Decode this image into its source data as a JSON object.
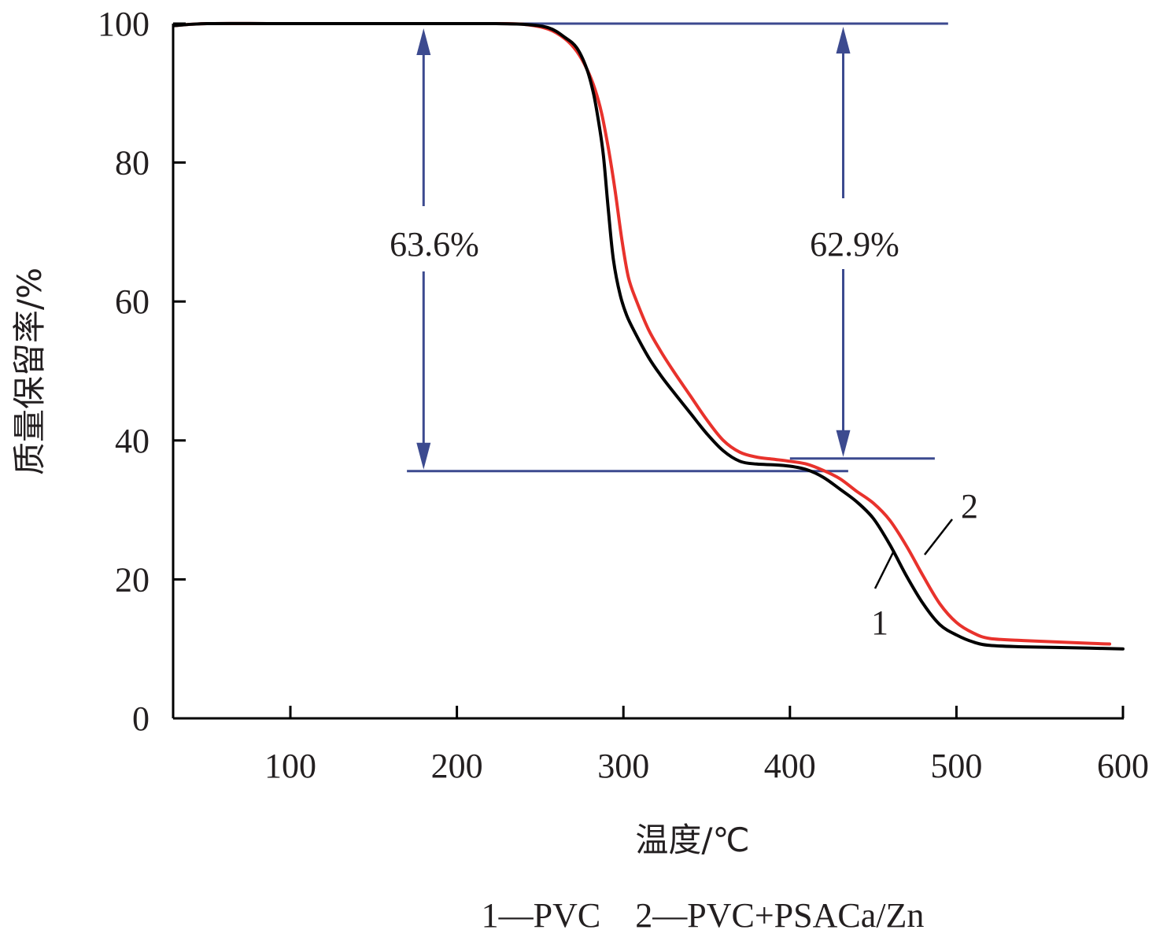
{
  "chart_data": {
    "type": "line",
    "xlabel": "温度/℃",
    "ylabel": "质量保留率/%",
    "xlim": [
      30,
      600
    ],
    "ylim": [
      0,
      100
    ],
    "x_ticks": [
      100,
      200,
      300,
      400,
      500,
      600
    ],
    "y_ticks": [
      0,
      20,
      40,
      60,
      80,
      100
    ],
    "grid": false,
    "series": [
      {
        "name": "1",
        "color": "#000000",
        "points": [
          [
            30,
            99.7
          ],
          [
            50,
            100
          ],
          [
            100,
            100
          ],
          [
            200,
            100
          ],
          [
            220,
            100
          ],
          [
            240,
            99.9
          ],
          [
            255,
            99.4
          ],
          [
            265,
            98.0
          ],
          [
            272,
            96.5
          ],
          [
            278,
            93.5
          ],
          [
            282,
            90.0
          ],
          [
            285,
            86.0
          ],
          [
            288,
            81.0
          ],
          [
            291,
            73.0
          ],
          [
            294,
            66.0
          ],
          [
            298,
            61.0
          ],
          [
            302,
            58.0
          ],
          [
            307,
            55.5
          ],
          [
            315,
            52.0
          ],
          [
            322,
            49.5
          ],
          [
            330,
            47.0
          ],
          [
            340,
            44.0
          ],
          [
            350,
            41.0
          ],
          [
            360,
            38.5
          ],
          [
            370,
            37.0
          ],
          [
            380,
            36.6
          ],
          [
            390,
            36.5
          ],
          [
            400,
            36.3
          ],
          [
            410,
            35.8
          ],
          [
            420,
            34.7
          ],
          [
            430,
            33.0
          ],
          [
            440,
            31.2
          ],
          [
            450,
            28.8
          ],
          [
            460,
            25.0
          ],
          [
            470,
            20.5
          ],
          [
            480,
            16.5
          ],
          [
            490,
            13.5
          ],
          [
            500,
            12.0
          ],
          [
            510,
            11.0
          ],
          [
            520,
            10.5
          ],
          [
            540,
            10.3
          ],
          [
            560,
            10.2
          ],
          [
            580,
            10.1
          ],
          [
            600,
            10.0
          ]
        ]
      },
      {
        "name": "2",
        "color": "#e8322c",
        "points": [
          [
            30,
            99.7
          ],
          [
            50,
            100
          ],
          [
            100,
            100
          ],
          [
            200,
            100
          ],
          [
            220,
            100
          ],
          [
            240,
            99.9
          ],
          [
            255,
            99.2
          ],
          [
            265,
            97.8
          ],
          [
            272,
            96.0
          ],
          [
            278,
            93.5
          ],
          [
            283,
            90.5
          ],
          [
            287,
            87.0
          ],
          [
            291,
            82.0
          ],
          [
            295,
            76.0
          ],
          [
            299,
            69.0
          ],
          [
            303,
            63.5
          ],
          [
            308,
            60.0
          ],
          [
            315,
            56.0
          ],
          [
            322,
            53.0
          ],
          [
            330,
            50.0
          ],
          [
            340,
            46.5
          ],
          [
            350,
            43.0
          ],
          [
            360,
            40.0
          ],
          [
            370,
            38.3
          ],
          [
            380,
            37.6
          ],
          [
            390,
            37.3
          ],
          [
            400,
            37.0
          ],
          [
            410,
            36.6
          ],
          [
            420,
            35.7
          ],
          [
            430,
            34.5
          ],
          [
            440,
            32.7
          ],
          [
            450,
            31.0
          ],
          [
            460,
            28.5
          ],
          [
            470,
            24.8
          ],
          [
            480,
            20.5
          ],
          [
            490,
            16.5
          ],
          [
            500,
            13.8
          ],
          [
            510,
            12.3
          ],
          [
            520,
            11.5
          ],
          [
            540,
            11.2
          ],
          [
            560,
            11.0
          ],
          [
            580,
            10.8
          ],
          [
            592,
            10.7
          ]
        ]
      }
    ],
    "annotations": {
      "left_percent": "63.6%",
      "right_percent": "62.9%",
      "curve_label_1": "1",
      "curve_label_2": "2"
    },
    "reference_lines": {
      "top_level": 100,
      "bottom_level": 36.5,
      "left_arrow_x": 180,
      "right_arrow_x": 432
    },
    "legend": {
      "text": "1—PVC　2—PVC+PSACa/Zn"
    },
    "colors": {
      "axis": "#000000",
      "annotation_lines": "#3c4a8f",
      "series1": "#000000",
      "series2": "#e8322c"
    }
  }
}
